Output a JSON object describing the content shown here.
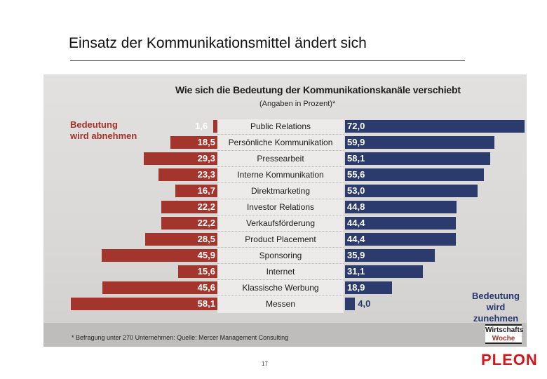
{
  "slide": {
    "title": "Einsatz der Kommunikationsmittel ändert sich",
    "page_number": "17",
    "brand": "PLEON"
  },
  "chart_data": {
    "type": "bar",
    "subtype": "diverging-horizontal",
    "title": "Wie sich die Bedeutung der Kommunikationskanäle verschiebt",
    "subtitle": "(Angaben in Prozent)*",
    "categories": [
      "Public Relations",
      "Persönliche Kommunikation",
      "Pressearbeit",
      "Interne Kommunikation",
      "Direktmarketing",
      "Investor Relations",
      "Verkaufsförderung",
      "Product Placement",
      "Sponsoring",
      "Internet",
      "Klassische Werbung",
      "Messen"
    ],
    "series": [
      {
        "name": "Bedeutung wird abnehmen",
        "color": "#a3352c",
        "direction": "left",
        "values": [
          1.6,
          18.5,
          29.3,
          23.3,
          16.7,
          22.2,
          22.2,
          28.5,
          45.9,
          15.6,
          45.6,
          58.1
        ],
        "labels": [
          "1,6",
          "18,5",
          "29,3",
          "23,3",
          "16,7",
          "22,2",
          "22,2",
          "28,5",
          "45,9",
          "15,6",
          "45,6",
          "58,1"
        ]
      },
      {
        "name": "Bedeutung wird zunehmen",
        "color": "#2c3b6e",
        "direction": "right",
        "values": [
          72.0,
          59.9,
          58.1,
          55.6,
          53.0,
          44.8,
          44.4,
          44.4,
          35.9,
          31.1,
          18.9,
          4.0
        ],
        "labels": [
          "72,0",
          "59,9",
          "58,1",
          "55,6",
          "53,0",
          "44,8",
          "44,4",
          "44,4",
          "35,9",
          "31,1",
          "18,9",
          "4,0"
        ]
      }
    ],
    "legend": {
      "left_line1": "Bedeutung",
      "left_line2": "wird abnehmen",
      "right_line1": "Bedeutung",
      "right_line2": "wird zunehmen"
    },
    "footnote": "* Befragung unter 270 Unternehmen: Quelle: Mercer Management Consulting",
    "source_logo": {
      "line1": "Wirtschafts",
      "line2": "Woche"
    }
  }
}
